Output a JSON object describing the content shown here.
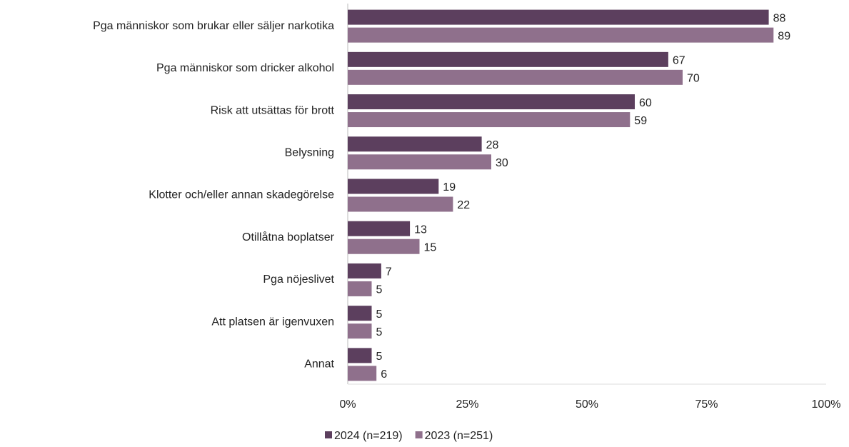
{
  "chart_data": {
    "type": "bar",
    "orientation": "horizontal",
    "categories": [
      "Pga människor som brukar eller säljer narkotika",
      "Pga människor som dricker alkohol ",
      "Risk att utsättas för brott",
      "Belysning",
      "Klotter och/eller annan skadegörelse",
      "Otillåtna boplatser",
      "Pga nöjeslivet",
      "Att platsen är igenvuxen",
      "Annat"
    ],
    "series": [
      {
        "name": "2024 (n=219)",
        "color": "#5c3f5e",
        "values": [
          88,
          67,
          60,
          28,
          19,
          13,
          7,
          5,
          5
        ]
      },
      {
        "name": "2023 (n=251)",
        "color": "#8f708c",
        "values": [
          89,
          70,
          59,
          30,
          22,
          15,
          5,
          5,
          6
        ]
      }
    ],
    "xlim": [
      0,
      100
    ],
    "xticks": [
      {
        "value": 0,
        "label": "0%"
      },
      {
        "value": 25,
        "label": "25%"
      },
      {
        "value": 50,
        "label": "50%"
      },
      {
        "value": 75,
        "label": "75%"
      },
      {
        "value": 100,
        "label": "100%"
      }
    ],
    "grid": false,
    "legend": "bottom"
  }
}
